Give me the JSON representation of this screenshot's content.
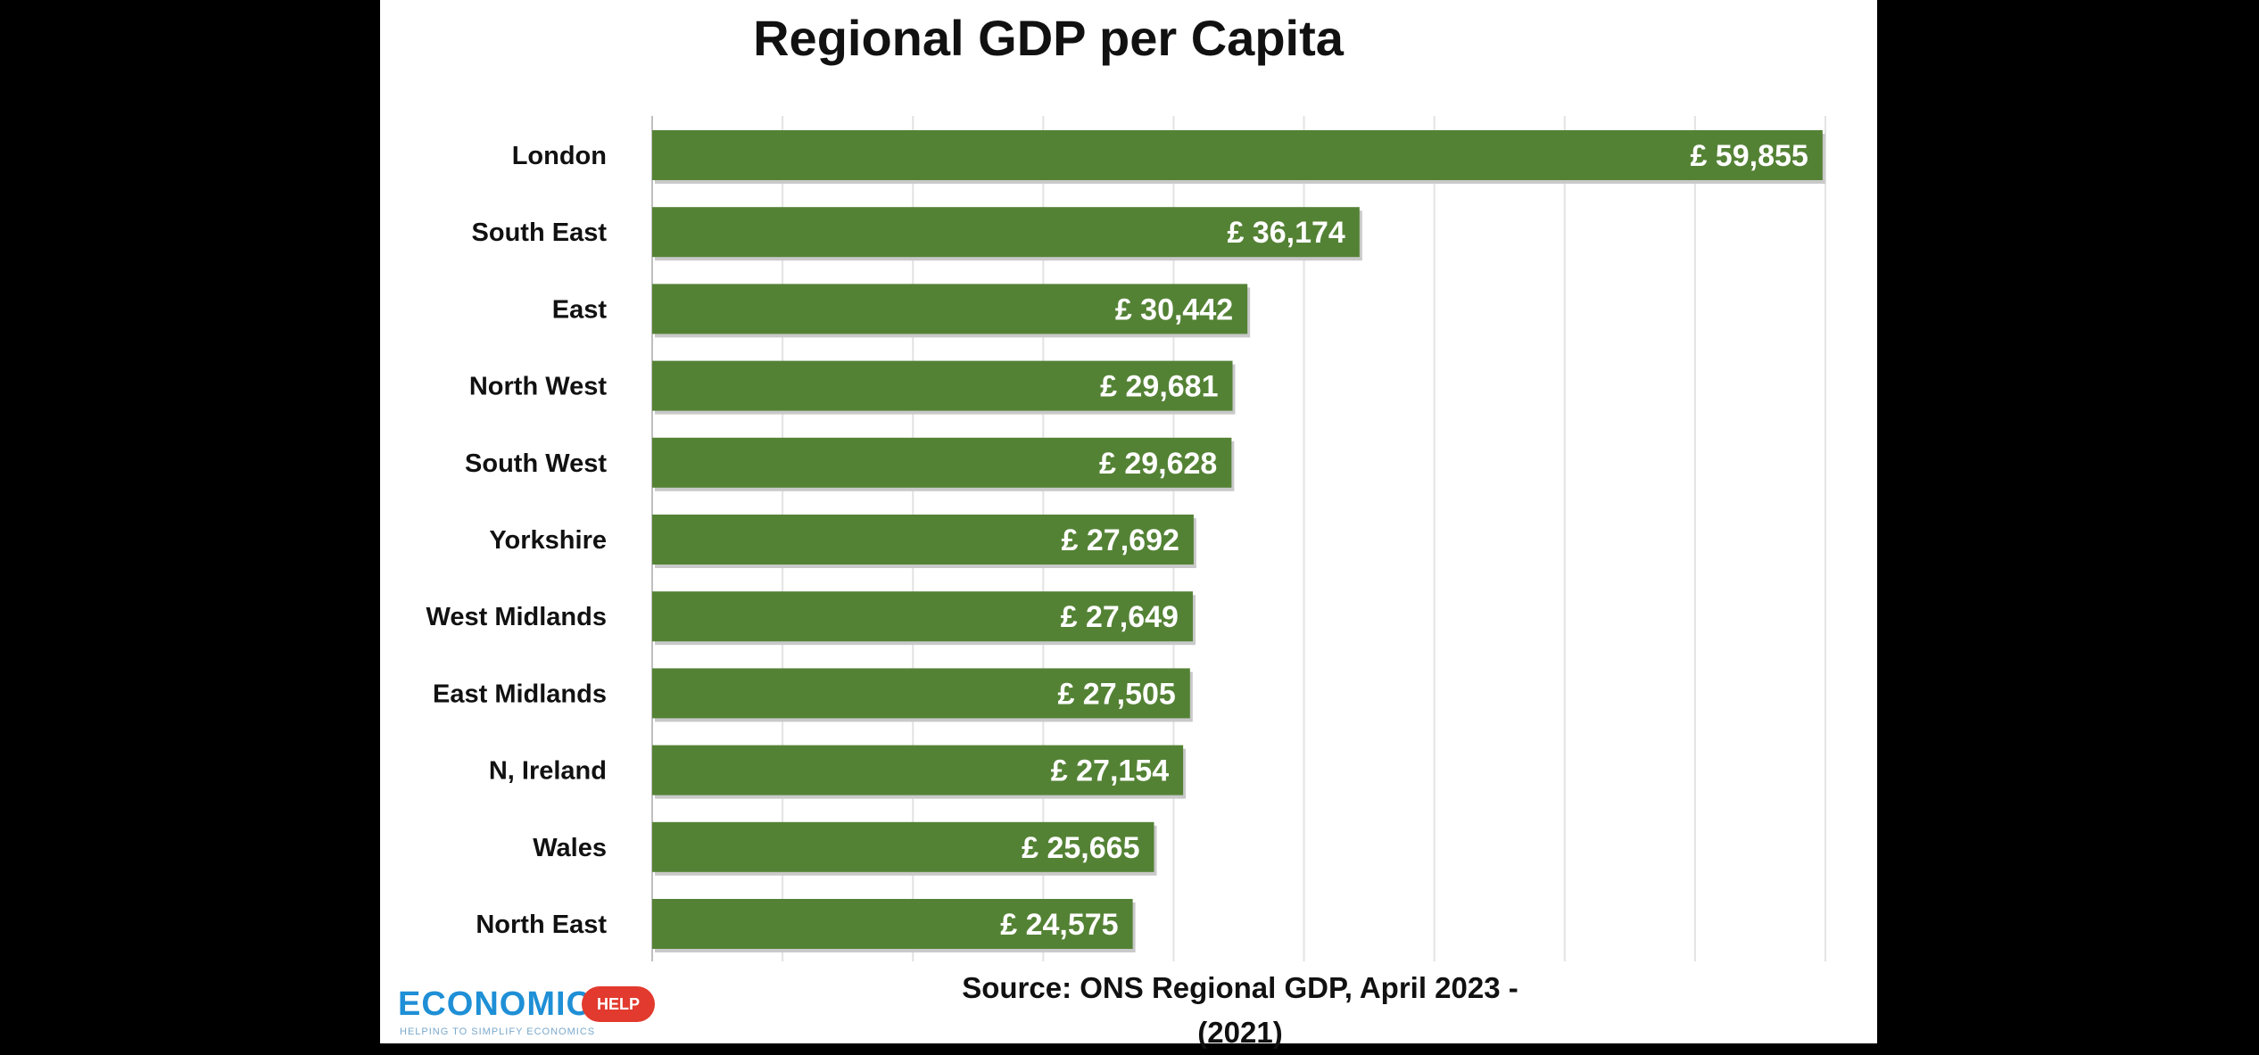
{
  "chart_data": {
    "type": "bar",
    "orientation": "horizontal",
    "title": "Regional GDP per Capita",
    "source": "Source: ONS Regional GDP, April 2023 - (2021)",
    "categories": [
      "London",
      "South East",
      "East",
      "North West",
      "South West",
      "Yorkshire",
      "West Midlands",
      "East Midlands",
      "N, Ireland",
      "Wales",
      "North East"
    ],
    "values": [
      59855,
      36174,
      30442,
      29681,
      29628,
      27692,
      27649,
      27505,
      27154,
      25665,
      24575
    ],
    "value_labels": [
      "£ 59,855",
      "£ 36,174",
      "£ 30,442",
      "£ 29,681",
      "£ 29,628",
      "£ 27,692",
      "£ 27,649",
      "£ 27,505",
      "£ 27,154",
      "£ 25,665",
      "£ 24,575"
    ],
    "xlim": [
      0,
      60000
    ],
    "grid": true,
    "gridline_step": 6666.7,
    "bar_color": "#548235",
    "value_label_color": "#ffffff"
  },
  "logo": {
    "word": "ECONOMICS",
    "badge": "HELP",
    "tagline": "HELPING TO SIMPLIFY ECONOMICS"
  }
}
